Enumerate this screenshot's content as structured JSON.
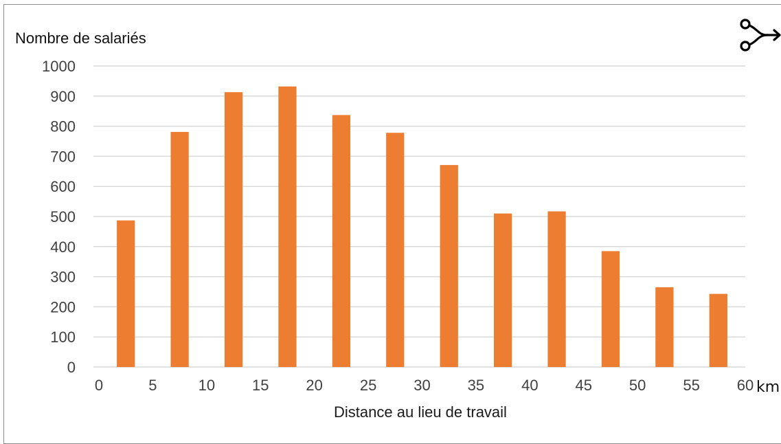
{
  "chart_data": {
    "type": "bar",
    "ylabel": "Nombre de salariés",
    "xlabel": "Distance au lieu de travail",
    "x_unit": "km",
    "x_ticks": [
      "0",
      "5",
      "10",
      "15",
      "20",
      "25",
      "30",
      "35",
      "40",
      "45",
      "50",
      "55",
      "60"
    ],
    "y_ticks": [
      "0",
      "100",
      "200",
      "300",
      "400",
      "500",
      "600",
      "700",
      "800",
      "900",
      "1000"
    ],
    "xlim": [
      0,
      60
    ],
    "ylim": [
      0,
      1000
    ],
    "grid": true,
    "bar_color": "#ED7D31",
    "bins": [
      {
        "from": 0,
        "to": 5,
        "value": 487
      },
      {
        "from": 5,
        "to": 10,
        "value": 781
      },
      {
        "from": 10,
        "to": 15,
        "value": 913
      },
      {
        "from": 15,
        "to": 20,
        "value": 932
      },
      {
        "from": 20,
        "to": 25,
        "value": 837
      },
      {
        "from": 25,
        "to": 30,
        "value": 778
      },
      {
        "from": 30,
        "to": 35,
        "value": 671
      },
      {
        "from": 35,
        "to": 40,
        "value": 510
      },
      {
        "from": 40,
        "to": 45,
        "value": 517
      },
      {
        "from": 45,
        "to": 50,
        "value": 385
      },
      {
        "from": 50,
        "to": 55,
        "value": 265
      },
      {
        "from": 55,
        "to": 60,
        "value": 243
      }
    ]
  },
  "icons": {
    "corner": "fork-arrow-icon"
  }
}
